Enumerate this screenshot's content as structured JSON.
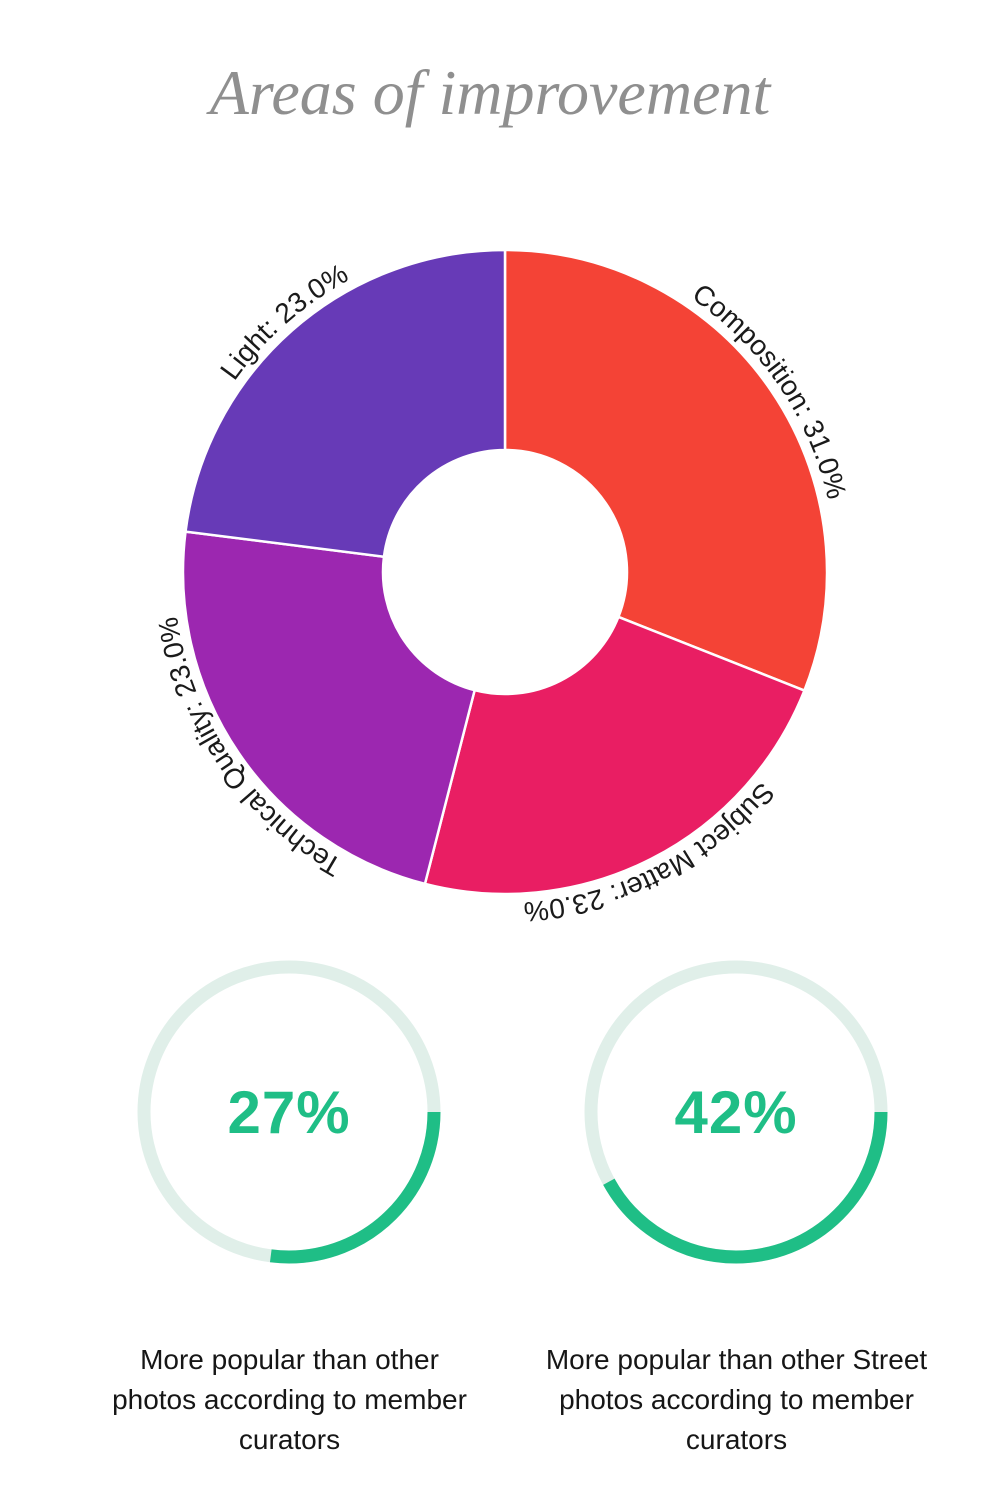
{
  "title": {
    "text": "Areas of improvement",
    "color": "#8f8f8f"
  },
  "chart_data": [
    {
      "type": "pie",
      "subtype": "donut",
      "title": "Areas of improvement",
      "categories": [
        "Composition",
        "Subject Matter",
        "Technical Quality",
        "Light"
      ],
      "values": [
        31.0,
        23.0,
        23.0,
        23.0
      ],
      "unit": "percent",
      "labels": [
        "Composition: 31.0%",
        "Subject Matter: 23.0%",
        "Technical Quality: 23.0%",
        "Light: 23.0%"
      ],
      "colors": [
        "#F44336",
        "#E91E63",
        "#9C27B0",
        "#673AB7"
      ],
      "start_angle": "12-o-clock",
      "direction": "clockwise",
      "label_placement": "curved-outside",
      "legend": "none",
      "label_color": "#1a1a1a"
    },
    {
      "type": "gauge",
      "value": 27,
      "max": 100,
      "value_label": "27%",
      "caption": "More popular than other photos according to member curators",
      "color": "#1FBE86",
      "track_color": "#E0EFE9",
      "start_angle": "3-o-clock",
      "direction": "clockwise"
    },
    {
      "type": "gauge",
      "value": 42,
      "max": 100,
      "value_label": "42%",
      "caption": "More popular than other Street photos according to member curators",
      "color": "#1FBE86",
      "track_color": "#E0EFE9",
      "start_angle": "3-o-clock",
      "direction": "clockwise"
    }
  ]
}
